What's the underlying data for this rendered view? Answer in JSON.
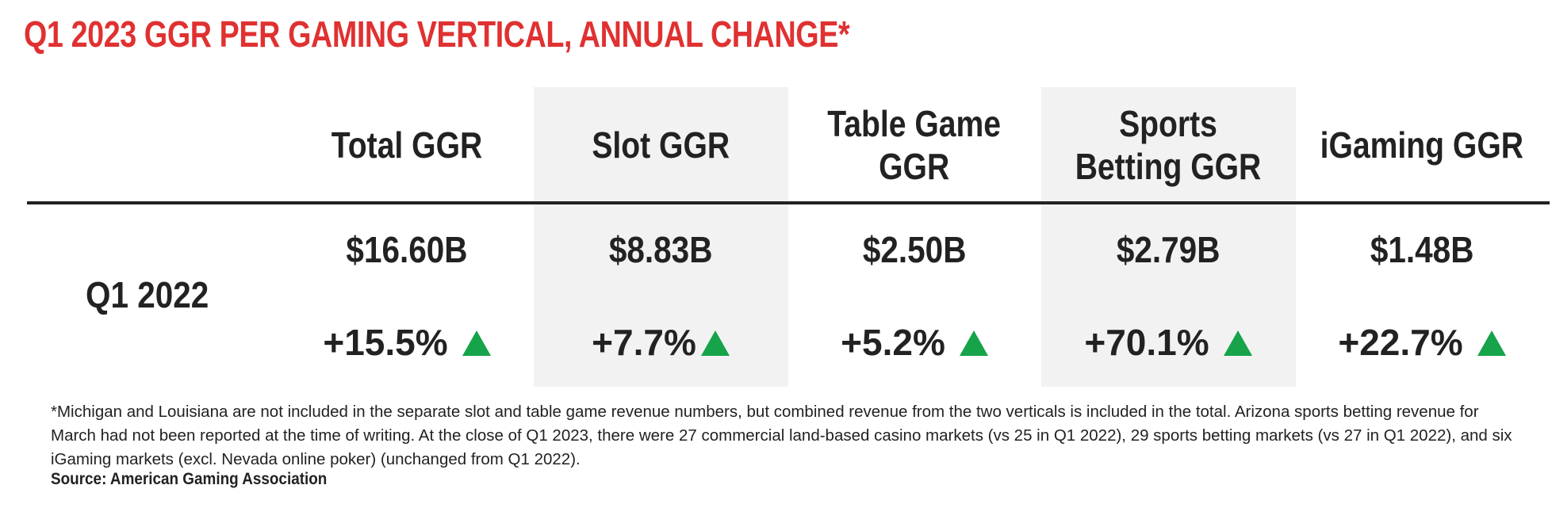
{
  "title": "Q1 2023 GGR PER GAMING VERTICAL, ANNUAL CHANGE*",
  "colors": {
    "title": "#e03131",
    "text": "#222222",
    "shade": "#f2f2f2",
    "up_arrow": "#16a34a"
  },
  "table": {
    "columns": [
      {
        "header": "Total GGR",
        "value": "$16.60B",
        "change": "+15.5%",
        "direction": "up-arrow-icon",
        "shaded": false
      },
      {
        "header": "Slot GGR",
        "value": "$8.83B",
        "change": "+7.7%",
        "direction": "up-arrow-icon",
        "shaded": true
      },
      {
        "header": "Table Game\nGGR",
        "value": "$2.50B",
        "change": "+5.2%",
        "direction": "up-arrow-icon",
        "shaded": false
      },
      {
        "header": "Sports\nBetting GGR",
        "value": "$2.79B",
        "change": "+70.1%",
        "direction": "up-arrow-icon",
        "shaded": true
      },
      {
        "header": "iGaming GGR",
        "value": "$1.48B",
        "change": "+22.7%",
        "direction": "up-arrow-icon",
        "shaded": false
      }
    ],
    "row_label": "Q1 2022"
  },
  "footnote": "*Michigan and Louisiana are not included in the separate slot and table game revenue numbers, but combined revenue from the two verticals is included in the total. Arizona sports betting revenue for March had not been reported at the time of writing. At the close of Q1 2023, there were 27 commercial land-based casino markets (vs 25 in Q1 2022), 29 sports betting markets (vs 27 in Q1 2022), and six iGaming markets (excl. Nevada online poker) (unchanged from Q1 2022).",
  "source": "Source: American Gaming Association"
}
